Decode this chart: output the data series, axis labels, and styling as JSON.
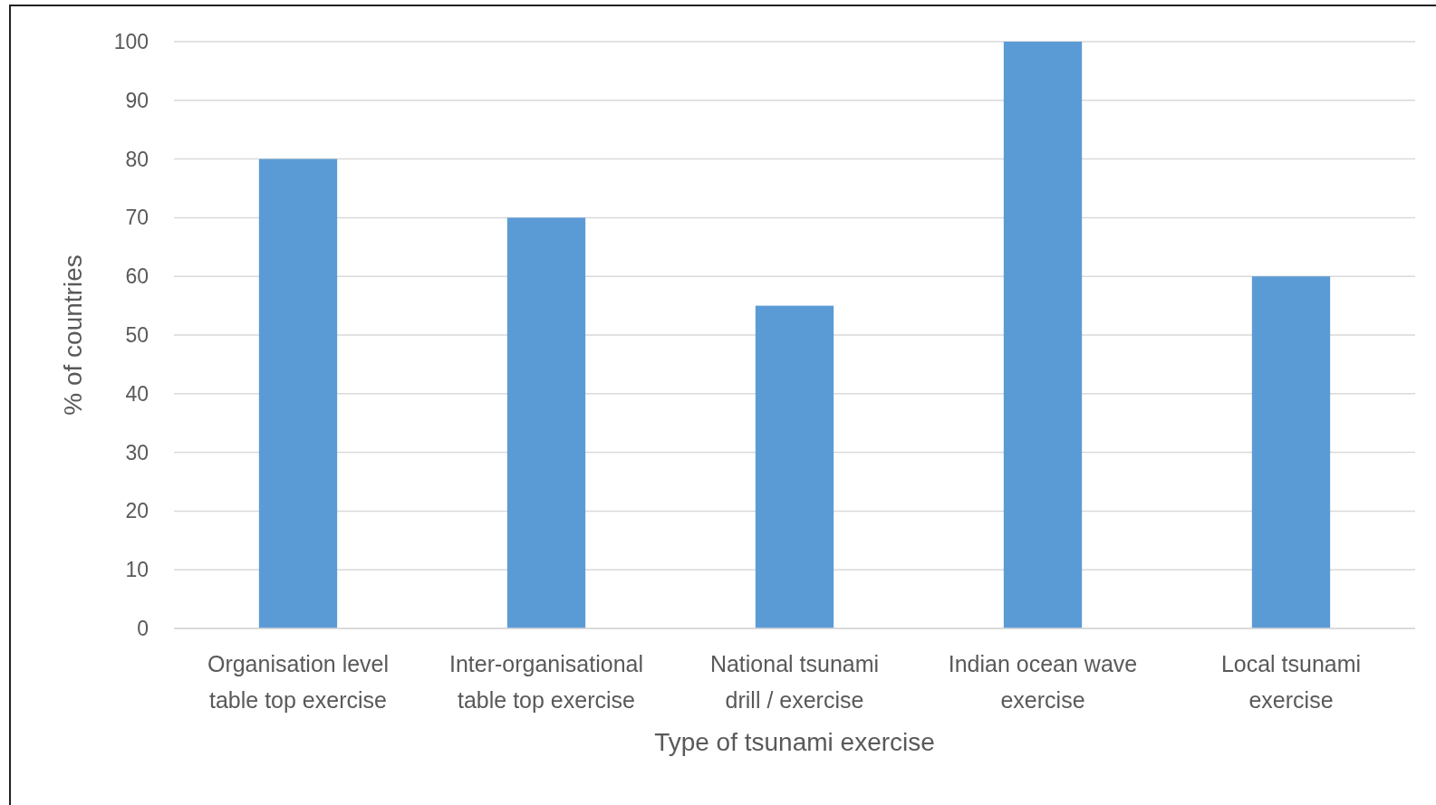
{
  "chart_data": {
    "type": "bar",
    "categories": [
      "Organisation level table top exercise",
      "Inter-organisational table top exercise",
      "National tsunami drill / exercise",
      "Indian ocean wave exercise",
      "Local tsunami exercise"
    ],
    "values": [
      80,
      70,
      55,
      100,
      60
    ],
    "color": "#5b9bd5",
    "xlabel": "Type of tsunami exercise",
    "ylabel": "% of countries",
    "ylim": [
      0,
      100
    ],
    "yticks": [
      0,
      10,
      20,
      30,
      40,
      50,
      60,
      70,
      80,
      90,
      100
    ],
    "grid": "y"
  }
}
